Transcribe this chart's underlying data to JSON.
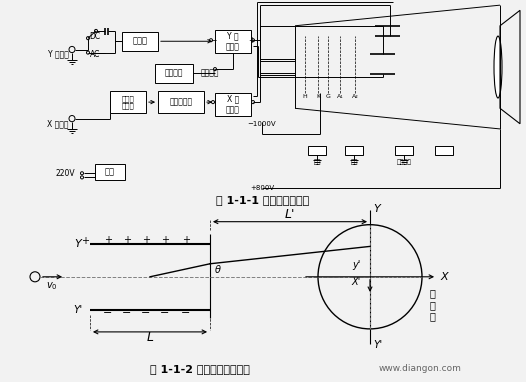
{
  "bg_color": "#f2f2f2",
  "title1": "图 1-1-1 示波器电路框图",
  "title2": "图 1-1-2 示波器工作原理图",
  "watermark": "www.diangon.com",
  "fig_width": 5.26,
  "fig_height": 3.82,
  "dpi": 100
}
